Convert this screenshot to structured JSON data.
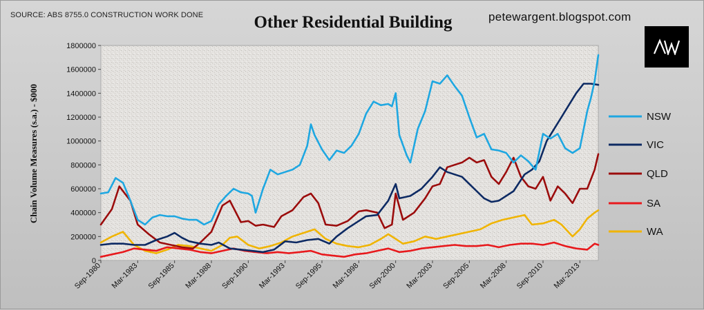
{
  "header": {
    "source": "SOURCE: ABS 8755.0 CONSTRUCTION WORK DONE",
    "title": "Other Residential Building",
    "blog": "petewargent.blogspot.com",
    "logo_text": "AW"
  },
  "chart_data": {
    "type": "line",
    "title": "Other Residential Building",
    "xlabel": "",
    "ylabel": "Chain Volume Measures (s.a.) - $000",
    "ylim": [
      0,
      1800000
    ],
    "yticks": [
      0,
      200000,
      400000,
      600000,
      800000,
      1000000,
      1200000,
      1400000,
      1600000,
      1800000
    ],
    "xlim": [
      1980.75,
      2014.5
    ],
    "xtick_labels": [
      {
        "label": "Sep-1980",
        "x": 1980.75
      },
      {
        "label": "Mar-1983",
        "x": 1983.25
      },
      {
        "label": "Sep-1985",
        "x": 1985.75
      },
      {
        "label": "Mar-1988",
        "x": 1988.25
      },
      {
        "label": "Sep-1990",
        "x": 1990.75
      },
      {
        "label": "Mar-1993",
        "x": 1993.25
      },
      {
        "label": "Sep-1995",
        "x": 1995.75
      },
      {
        "label": "Mar-1998",
        "x": 1998.25
      },
      {
        "label": "Sep-2000",
        "x": 2000.75
      },
      {
        "label": "Mar-2003",
        "x": 2003.25
      },
      {
        "label": "Sep-2005",
        "x": 2005.75
      },
      {
        "label": "Mar-2008",
        "x": 2008.25
      },
      {
        "label": "Sep-2010",
        "x": 2010.75
      },
      {
        "label": "Mar-2013",
        "x": 2013.25
      }
    ],
    "series": [
      {
        "name": "NSW",
        "color": "#1ea7e1",
        "x": [
          1980.75,
          1981.25,
          1981.75,
          1982.25,
          1982.75,
          1983.25,
          1983.75,
          1984.25,
          1984.75,
          1985.25,
          1985.75,
          1986.25,
          1986.75,
          1987.25,
          1987.75,
          1988.25,
          1988.75,
          1989.25,
          1989.75,
          1990.25,
          1990.75,
          1991.0,
          1991.25,
          1991.75,
          1992.25,
          1992.75,
          1993.25,
          1993.75,
          1994.25,
          1994.75,
          1995.0,
          1995.25,
          1995.75,
          1996.25,
          1996.75,
          1997.25,
          1997.75,
          1998.25,
          1998.75,
          1999.25,
          1999.75,
          2000.25,
          2000.5,
          2000.75,
          2001.0,
          2001.5,
          2001.75,
          2002.25,
          2002.75,
          2003.25,
          2003.75,
          2004.25,
          2004.75,
          2005.25,
          2005.75,
          2006.25,
          2006.75,
          2007.25,
          2007.75,
          2008.25,
          2008.75,
          2009.25,
          2009.75,
          2010.25,
          2010.75,
          2011.25,
          2011.75,
          2012.25,
          2012.75,
          2013.25,
          2013.75,
          2014.0,
          2014.25,
          2014.5
        ],
        "values": [
          560000,
          570000,
          690000,
          650000,
          500000,
          340000,
          300000,
          360000,
          380000,
          370000,
          370000,
          350000,
          340000,
          340000,
          300000,
          330000,
          470000,
          540000,
          600000,
          570000,
          560000,
          540000,
          400000,
          600000,
          760000,
          720000,
          740000,
          760000,
          800000,
          960000,
          1140000,
          1050000,
          930000,
          840000,
          920000,
          900000,
          960000,
          1060000,
          1230000,
          1330000,
          1300000,
          1310000,
          1290000,
          1400000,
          1050000,
          880000,
          820000,
          1100000,
          1250000,
          1500000,
          1480000,
          1550000,
          1460000,
          1380000,
          1200000,
          1030000,
          1060000,
          930000,
          920000,
          900000,
          820000,
          880000,
          830000,
          760000,
          1060000,
          1020000,
          1060000,
          940000,
          900000,
          940000,
          1250000,
          1360000,
          1500000,
          1720000
        ]
      },
      {
        "name": "VIC",
        "color": "#0d2a63",
        "x": [
          1980.75,
          1981.5,
          1982.25,
          1983.0,
          1983.75,
          1984.5,
          1985.25,
          1985.75,
          1986.25,
          1986.75,
          1987.5,
          1988.25,
          1988.75,
          1989.5,
          1990.25,
          1991.0,
          1991.75,
          1992.5,
          1993.25,
          1994.0,
          1994.75,
          1995.5,
          1996.25,
          1996.75,
          1997.5,
          1998.25,
          1998.75,
          1999.5,
          2000.25,
          2000.75,
          2001.0,
          2001.75,
          2002.5,
          2003.25,
          2003.75,
          2004.25,
          2004.75,
          2005.25,
          2005.75,
          2006.25,
          2006.75,
          2007.25,
          2007.75,
          2008.25,
          2008.75,
          2009.5,
          2010.0,
          2010.5,
          2011.0,
          2011.5,
          2012.0,
          2012.5,
          2013.0,
          2013.5,
          2014.0,
          2014.5
        ],
        "values": [
          130000,
          140000,
          140000,
          130000,
          130000,
          170000,
          200000,
          230000,
          190000,
          160000,
          140000,
          130000,
          150000,
          100000,
          90000,
          80000,
          70000,
          90000,
          160000,
          150000,
          170000,
          180000,
          140000,
          200000,
          270000,
          330000,
          370000,
          380000,
          500000,
          640000,
          520000,
          540000,
          600000,
          700000,
          780000,
          740000,
          720000,
          700000,
          640000,
          580000,
          520000,
          490000,
          500000,
          540000,
          580000,
          720000,
          760000,
          830000,
          1000000,
          1100000,
          1200000,
          1300000,
          1400000,
          1480000,
          1480000,
          1470000
        ]
      },
      {
        "name": "QLD",
        "color": "#9b0c0c",
        "x": [
          1980.75,
          1981.5,
          1982.0,
          1982.75,
          1983.25,
          1984.0,
          1984.75,
          1985.5,
          1986.25,
          1987.0,
          1987.5,
          1988.25,
          1989.0,
          1989.5,
          1990.25,
          1990.75,
          1991.25,
          1991.75,
          1992.5,
          1993.0,
          1993.75,
          1994.5,
          1995.0,
          1995.5,
          1996.0,
          1996.75,
          1997.5,
          1998.25,
          1998.75,
          1999.5,
          2000.0,
          2000.5,
          2000.75,
          2001.25,
          2002.0,
          2002.75,
          2003.25,
          2003.75,
          2004.25,
          2004.75,
          2005.25,
          2005.75,
          2006.25,
          2006.75,
          2007.25,
          2007.75,
          2008.25,
          2008.75,
          2009.25,
          2009.75,
          2010.25,
          2010.75,
          2011.25,
          2011.75,
          2012.25,
          2012.75,
          2013.25,
          2013.75,
          2014.25,
          2014.5
        ],
        "values": [
          300000,
          430000,
          620000,
          500000,
          300000,
          220000,
          150000,
          130000,
          110000,
          100000,
          150000,
          240000,
          460000,
          500000,
          320000,
          330000,
          290000,
          300000,
          280000,
          370000,
          420000,
          530000,
          560000,
          480000,
          300000,
          290000,
          330000,
          410000,
          420000,
          400000,
          270000,
          300000,
          560000,
          340000,
          400000,
          520000,
          620000,
          640000,
          780000,
          800000,
          820000,
          860000,
          820000,
          840000,
          700000,
          640000,
          740000,
          860000,
          700000,
          620000,
          600000,
          700000,
          500000,
          620000,
          560000,
          480000,
          600000,
          600000,
          760000,
          890000
        ]
      },
      {
        "name": "SA",
        "color": "#e8191c",
        "x": [
          1980.75,
          1981.5,
          1982.25,
          1983.0,
          1983.75,
          1984.5,
          1985.25,
          1986.0,
          1986.75,
          1987.5,
          1988.25,
          1989.0,
          1989.75,
          1990.5,
          1991.25,
          1992.0,
          1992.75,
          1993.5,
          1994.25,
          1995.0,
          1995.75,
          1996.5,
          1997.25,
          1998.0,
          1998.75,
          1999.5,
          2000.25,
          2001.0,
          2001.75,
          2002.5,
          2003.25,
          2004.0,
          2004.75,
          2005.5,
          2006.25,
          2007.0,
          2007.75,
          2008.5,
          2009.25,
          2010.0,
          2010.75,
          2011.5,
          2012.25,
          2013.0,
          2013.75,
          2014.25,
          2014.5
        ],
        "values": [
          30000,
          50000,
          70000,
          100000,
          90000,
          80000,
          110000,
          100000,
          90000,
          70000,
          60000,
          80000,
          100000,
          80000,
          70000,
          60000,
          70000,
          60000,
          70000,
          80000,
          50000,
          40000,
          30000,
          50000,
          60000,
          80000,
          100000,
          70000,
          80000,
          100000,
          110000,
          120000,
          130000,
          120000,
          120000,
          130000,
          110000,
          130000,
          140000,
          140000,
          130000,
          150000,
          120000,
          100000,
          90000,
          140000,
          130000
        ]
      },
      {
        "name": "WA",
        "color": "#f0b400",
        "x": [
          1980.75,
          1981.5,
          1982.25,
          1983.0,
          1983.75,
          1984.5,
          1985.25,
          1986.0,
          1986.75,
          1987.5,
          1988.25,
          1989.0,
          1989.5,
          1990.0,
          1990.75,
          1991.5,
          1992.25,
          1993.0,
          1993.75,
          1994.5,
          1995.25,
          1996.0,
          1996.75,
          1997.5,
          1998.25,
          1999.0,
          1999.75,
          2000.25,
          2000.75,
          2001.25,
          2002.0,
          2002.75,
          2003.5,
          2004.25,
          2005.0,
          2005.75,
          2006.5,
          2007.25,
          2008.0,
          2008.75,
          2009.5,
          2010.0,
          2010.75,
          2011.5,
          2012.0,
          2012.75,
          2013.25,
          2013.75,
          2014.25,
          2014.5
        ],
        "values": [
          150000,
          200000,
          240000,
          130000,
          80000,
          60000,
          90000,
          130000,
          120000,
          100000,
          80000,
          130000,
          190000,
          200000,
          130000,
          100000,
          120000,
          150000,
          200000,
          230000,
          260000,
          180000,
          140000,
          120000,
          110000,
          130000,
          180000,
          220000,
          180000,
          140000,
          160000,
          200000,
          180000,
          200000,
          220000,
          240000,
          260000,
          310000,
          340000,
          360000,
          380000,
          300000,
          310000,
          340000,
          300000,
          200000,
          260000,
          350000,
          400000,
          420000
        ]
      }
    ]
  }
}
